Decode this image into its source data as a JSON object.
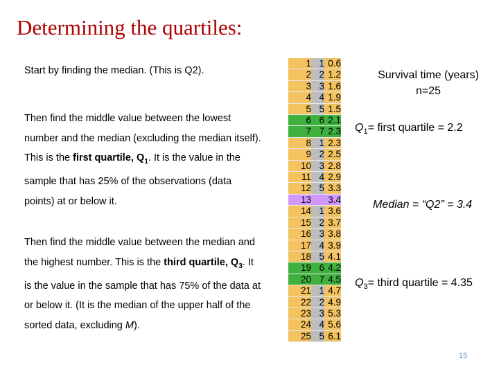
{
  "title": "Determining the quartiles:",
  "paragraph1": "Start by finding the median. (This is Q2).",
  "paragraph2": {
    "part1": "Then find the middle value between the lowest number and the median (excluding the median itself). This is the ",
    "bold_text": "first quartile, Q",
    "bold_sub": "1",
    "part2": ". It is the value in the sample that has 25% of the observations (data points) at or below it."
  },
  "paragraph3": {
    "part1": "Then find the middle value between the median and the highest number. This is the ",
    "bold_text": "third quartile, Q",
    "bold_sub": "3",
    "part2": ". It is the value in the sample that has 75% of the data at or below it. (It is the median of the upper half of the sorted data, excluding ",
    "italic": "M",
    "part3": ")."
  },
  "table": {
    "rows": [
      [
        "1",
        "1",
        "0.6"
      ],
      [
        "2",
        "2",
        "1.2"
      ],
      [
        "3",
        "3",
        "1.6"
      ],
      [
        "4",
        "4",
        "1.9"
      ],
      [
        "5",
        "5",
        "1.5"
      ],
      [
        "6",
        "6",
        "2.1"
      ],
      [
        "7",
        "7",
        "2.3"
      ],
      [
        "8",
        "1",
        "2.3"
      ],
      [
        "9",
        "2",
        "2.5"
      ],
      [
        "10",
        "3",
        "2.8"
      ],
      [
        "11",
        "4",
        "2.9"
      ],
      [
        "12",
        "5",
        "3.3"
      ],
      [
        "13",
        "",
        "3.4"
      ],
      [
        "14",
        "1",
        "3.6"
      ],
      [
        "15",
        "2",
        "3.7"
      ],
      [
        "16",
        "3",
        "3.8"
      ],
      [
        "17",
        "4",
        "3.9"
      ],
      [
        "18",
        "5",
        "4.1"
      ],
      [
        "19",
        "6",
        "4.2"
      ],
      [
        "20",
        "7",
        "4.5"
      ],
      [
        "21",
        "1",
        "4.7"
      ],
      [
        "22",
        "2",
        "4.9"
      ],
      [
        "23",
        "3",
        "5.3"
      ],
      [
        "24",
        "4",
        "5.6"
      ],
      [
        "25",
        "5",
        "6.1"
      ]
    ],
    "green_rows": [
      5,
      6,
      18,
      19
    ],
    "median_row": 12
  },
  "annotations": {
    "survival_line1": "Survival time (years)",
    "survival_line2": "n=25",
    "q1_label": "Q",
    "q1_sub": "1",
    "q1_rest": "= first quartile = 2.2",
    "median": "Median = “Q2” = 3.4",
    "q3_label": "Q",
    "q3_sub": "3",
    "q3_rest": "= third quartile = 4.35"
  },
  "page_number": "15",
  "colors": {
    "title": "#b00000",
    "table_orange": "#f4c25f",
    "table_gray": "#bdbdbd",
    "quartile_green": "#3fb13f",
    "median_purple": "#cf99ff"
  }
}
